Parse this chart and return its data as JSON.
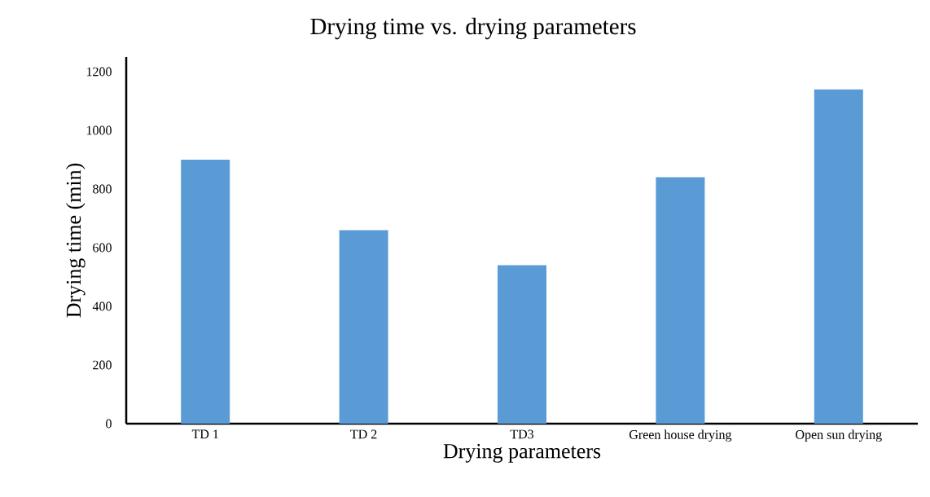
{
  "chart_data": {
    "type": "bar",
    "title": "Drying time vs. drying parameters",
    "xlabel": "Drying parameters",
    "ylabel": "Drying time (min)",
    "categories": [
      "TD 1",
      "TD 2",
      "TD3",
      "Green house drying",
      "Open sun drying"
    ],
    "values": [
      900,
      660,
      540,
      840,
      1140
    ],
    "color": "#5b9bd5",
    "ylim": [
      0,
      1250
    ],
    "yticks": [
      0,
      200,
      400,
      600,
      800,
      1000,
      1200
    ],
    "grid": false
  }
}
